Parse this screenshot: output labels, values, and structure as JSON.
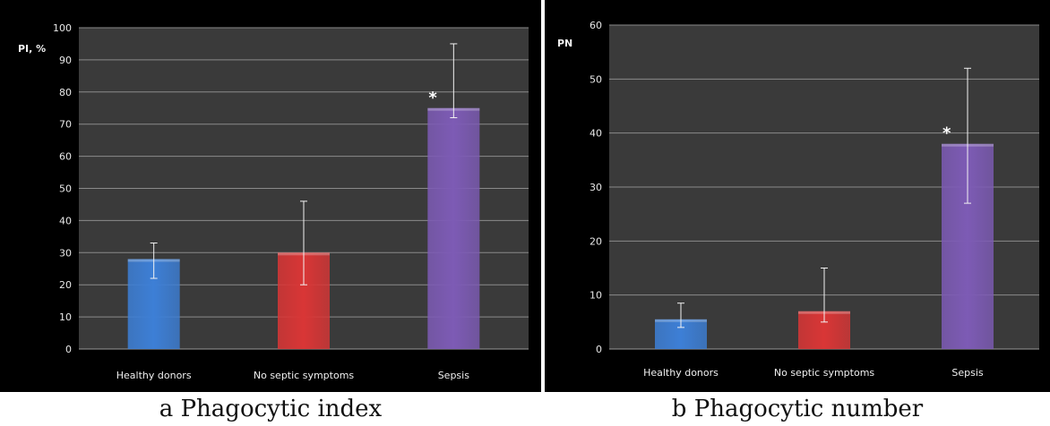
{
  "chart_data": [
    {
      "type": "bar",
      "ylabel": "PI, %",
      "ylim": [
        0,
        100
      ],
      "yticks": [
        0,
        10,
        20,
        30,
        40,
        50,
        60,
        70,
        80,
        90,
        100
      ],
      "categories": [
        "Healthy donors",
        "No septic symptoms",
        "Sepsis"
      ],
      "values": [
        28,
        30,
        75
      ],
      "error_low": [
        22,
        20,
        72
      ],
      "error_high": [
        33,
        46,
        95
      ],
      "colors": [
        "#3d7fd6",
        "#d93636",
        "#7d5bb5"
      ],
      "annotations": [
        {
          "category": "Sepsis",
          "text": "*"
        }
      ],
      "grid": true,
      "caption": "a Phagocytic index"
    },
    {
      "type": "bar",
      "ylabel": "PN",
      "ylim": [
        0,
        60
      ],
      "yticks": [
        0,
        10,
        20,
        30,
        40,
        50,
        60
      ],
      "categories": [
        "Healthy donors",
        "No septic symptoms",
        "Sepsis"
      ],
      "values": [
        5.5,
        7,
        38
      ],
      "error_low": [
        4,
        5,
        27
      ],
      "error_high": [
        8.5,
        15,
        52
      ],
      "colors": [
        "#3d7fd6",
        "#d93636",
        "#7d5bb5"
      ],
      "annotations": [
        {
          "category": "Sepsis",
          "text": "*"
        }
      ],
      "grid": true,
      "caption": "b Phagocytic number"
    }
  ]
}
